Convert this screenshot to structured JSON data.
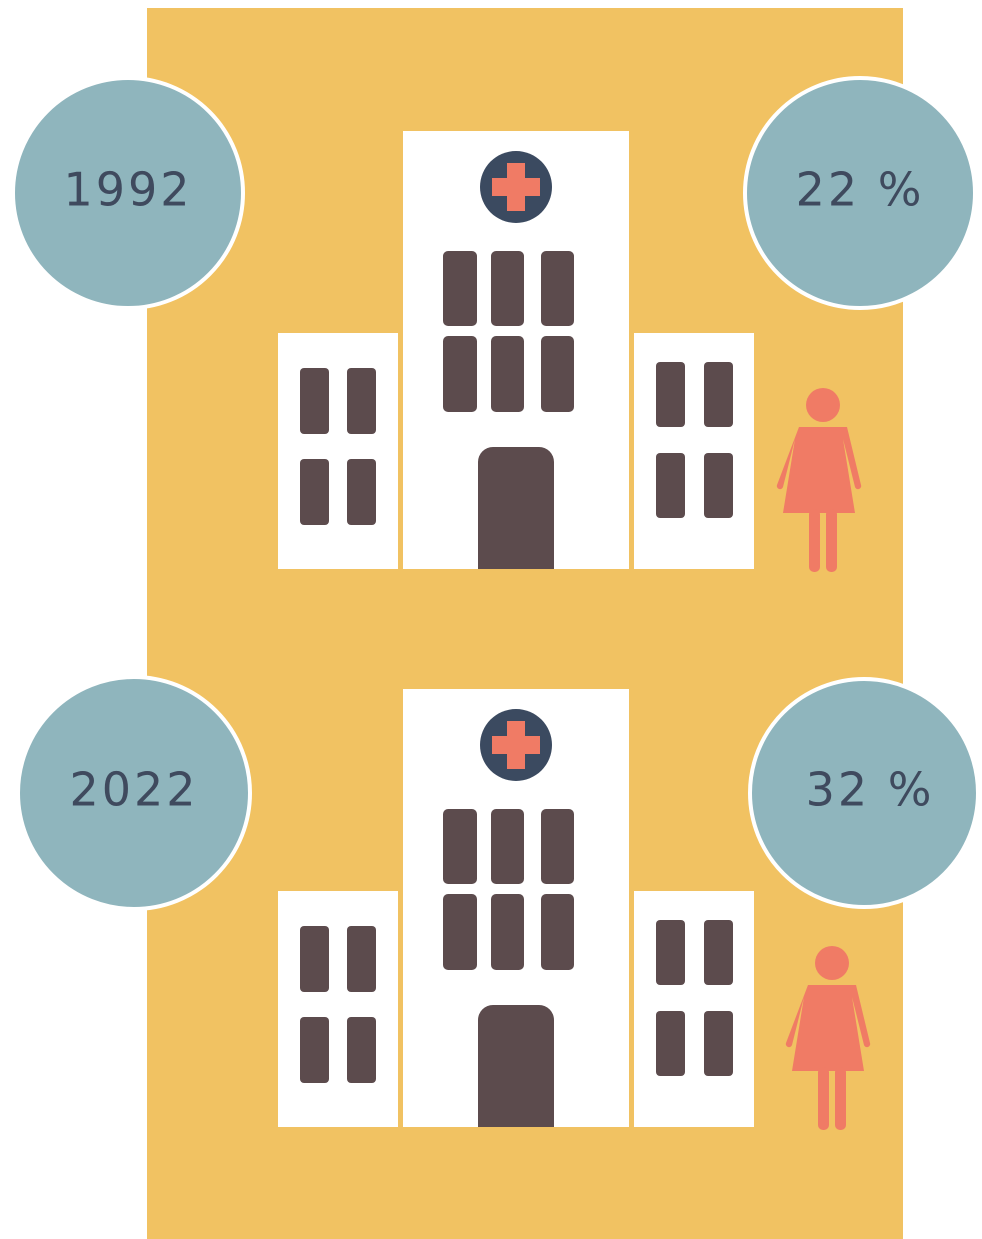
{
  "panels": [
    {
      "year": "1992",
      "share": "22 %"
    },
    {
      "year": "2022",
      "share": "32 %"
    }
  ]
}
